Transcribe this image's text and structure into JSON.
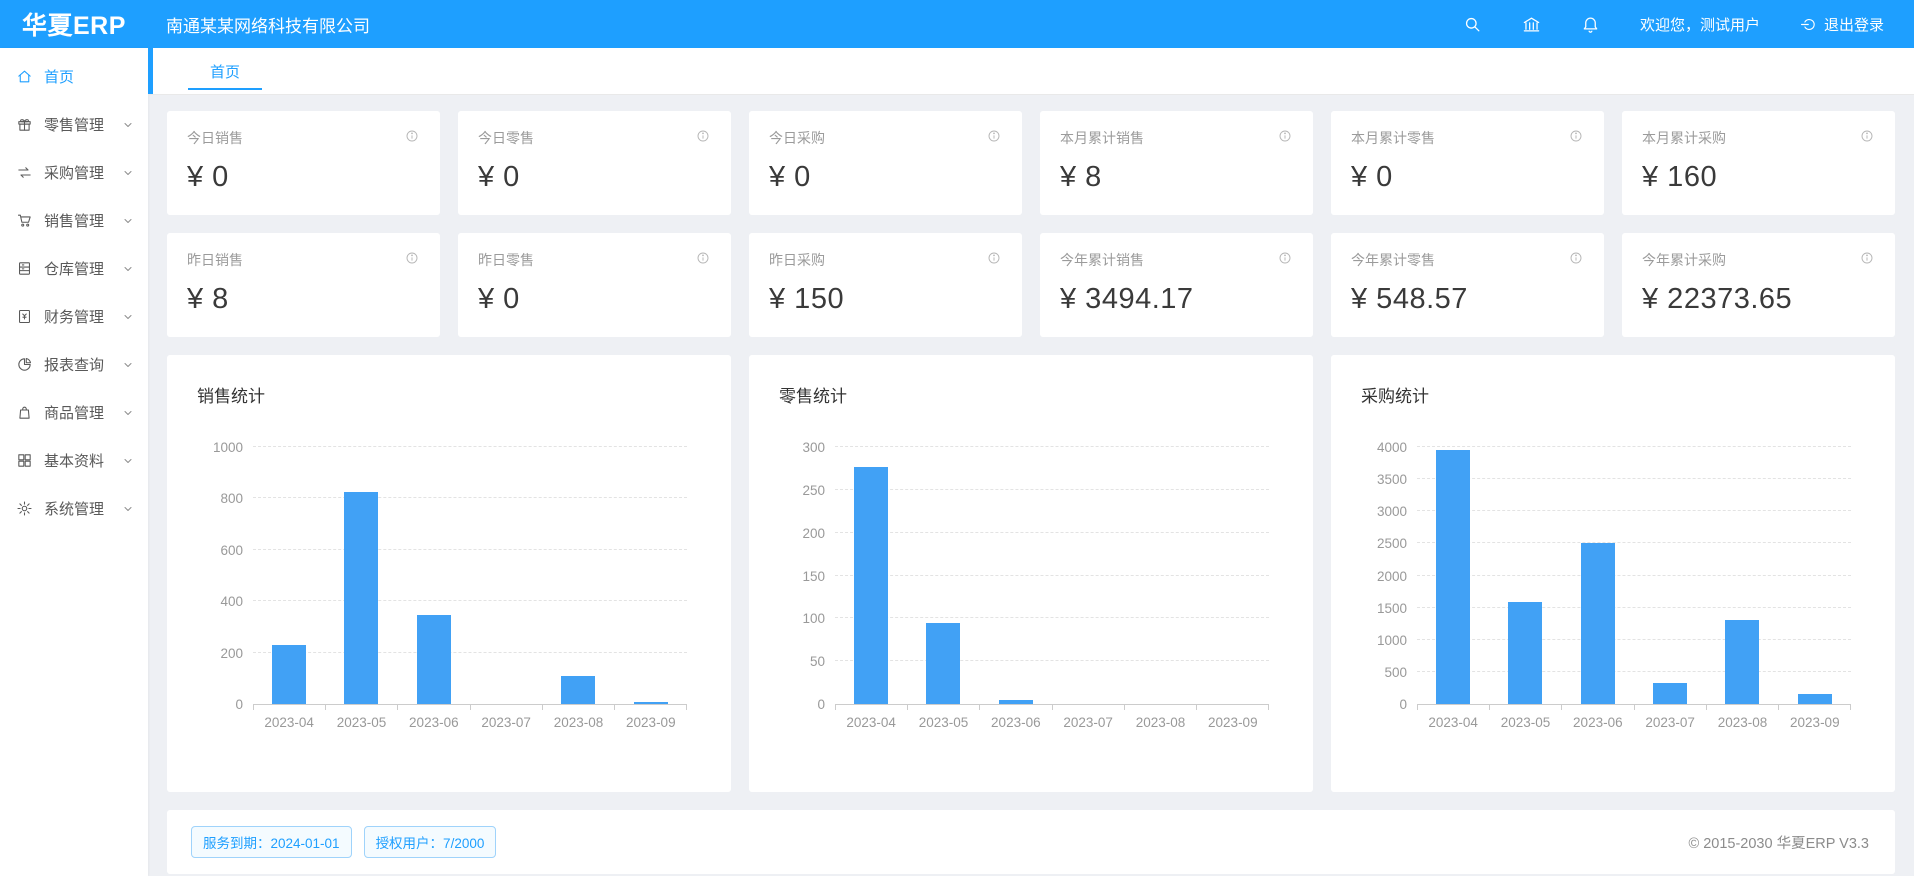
{
  "header": {
    "logo": "华夏ERP",
    "company": "南通某某网络科技有限公司",
    "actions": [
      {
        "icon": "search-icon"
      },
      {
        "icon": "bank-icon"
      },
      {
        "icon": "bell-icon"
      }
    ],
    "welcome": "欢迎您，测试用户",
    "logout_label": "退出登录",
    "logout_icon": "logout-icon"
  },
  "sidebar": {
    "items": [
      {
        "label": "首页",
        "icon": "home-icon",
        "active": true,
        "has_children": false
      },
      {
        "label": "零售管理",
        "icon": "gift-icon",
        "active": false,
        "has_children": true
      },
      {
        "label": "采购管理",
        "icon": "swap-icon",
        "active": false,
        "has_children": true
      },
      {
        "label": "销售管理",
        "icon": "cart-icon",
        "active": false,
        "has_children": true
      },
      {
        "label": "仓库管理",
        "icon": "warehouse-icon",
        "active": false,
        "has_children": true
      },
      {
        "label": "财务管理",
        "icon": "finance-icon",
        "active": false,
        "has_children": true
      },
      {
        "label": "报表查询",
        "icon": "pie-chart-icon",
        "active": false,
        "has_children": true
      },
      {
        "label": "商品管理",
        "icon": "bag-icon",
        "active": false,
        "has_children": true
      },
      {
        "label": "基本资料",
        "icon": "grid-icon",
        "active": false,
        "has_children": true
      },
      {
        "label": "系统管理",
        "icon": "gear-icon",
        "active": false,
        "has_children": true
      }
    ]
  },
  "tabs": [
    {
      "label": "首页",
      "active": true
    }
  ],
  "stat_cards": [
    {
      "label": "今日销售",
      "value": "¥ 0"
    },
    {
      "label": "今日零售",
      "value": "¥ 0"
    },
    {
      "label": "今日采购",
      "value": "¥ 0"
    },
    {
      "label": "本月累计销售",
      "value": "¥ 8"
    },
    {
      "label": "本月累计零售",
      "value": "¥ 0"
    },
    {
      "label": "本月累计采购",
      "value": "¥ 160"
    },
    {
      "label": "昨日销售",
      "value": "¥ 8"
    },
    {
      "label": "昨日零售",
      "value": "¥ 0"
    },
    {
      "label": "昨日采购",
      "value": "¥ 150"
    },
    {
      "label": "今年累计销售",
      "value": "¥ 3494.17"
    },
    {
      "label": "今年累计零售",
      "value": "¥ 548.57"
    },
    {
      "label": "今年累计采购",
      "value": "¥ 22373.65"
    }
  ],
  "chart_data": [
    {
      "type": "bar",
      "title": "销售统计",
      "categories": [
        "2023-04",
        "2023-05",
        "2023-06",
        "2023-07",
        "2023-08",
        "2023-09"
      ],
      "values": [
        230,
        825,
        345,
        0,
        110,
        8
      ],
      "xlabel": "",
      "ylabel": "",
      "ylim": [
        0,
        1000
      ],
      "yticks": [
        0,
        200,
        400,
        600,
        800,
        1000
      ],
      "grid": true,
      "legend": "none",
      "bar_color": "#41A1F5"
    },
    {
      "type": "bar",
      "title": "零售统计",
      "categories": [
        "2023-04",
        "2023-05",
        "2023-06",
        "2023-07",
        "2023-08",
        "2023-09"
      ],
      "values": [
        277,
        95,
        5,
        0,
        0,
        0
      ],
      "xlabel": "",
      "ylabel": "",
      "ylim": [
        0,
        300
      ],
      "yticks": [
        0,
        50,
        100,
        150,
        200,
        250,
        300
      ],
      "grid": true,
      "legend": "none",
      "bar_color": "#41A1F5"
    },
    {
      "type": "bar",
      "title": "采购统计",
      "categories": [
        "2023-04",
        "2023-05",
        "2023-06",
        "2023-07",
        "2023-08",
        "2023-09"
      ],
      "values": [
        3950,
        1590,
        2500,
        330,
        1300,
        160
      ],
      "xlabel": "",
      "ylabel": "",
      "ylim": [
        0,
        4000
      ],
      "yticks": [
        0,
        500,
        1000,
        1500,
        2000,
        2500,
        3000,
        3500,
        4000
      ],
      "grid": true,
      "legend": "none",
      "bar_color": "#41A1F5"
    }
  ],
  "footer": {
    "service_badge": "服务到期：2024-01-01",
    "license_badge": "授权用户：7/2000",
    "copyright": "© 2015-2030 华夏ERP V3.3"
  },
  "colors": {
    "primary": "#1E9FFF",
    "bar": "#41A1F5",
    "page_bg": "#EEF0F4",
    "muted_text": "#999999"
  }
}
